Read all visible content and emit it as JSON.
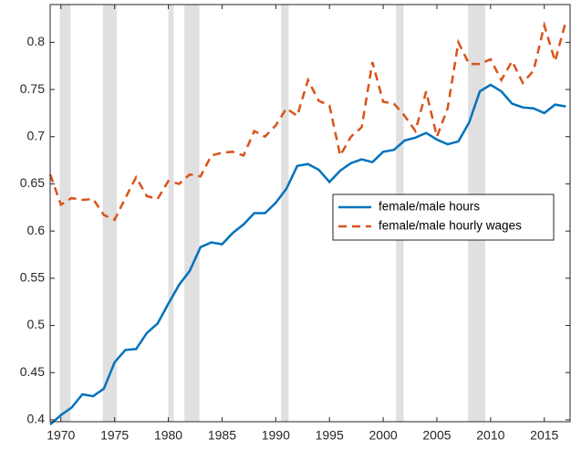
{
  "chart_data": {
    "type": "line",
    "x": [
      1969,
      1970,
      1971,
      1972,
      1973,
      1974,
      1975,
      1976,
      1977,
      1978,
      1979,
      1980,
      1981,
      1982,
      1983,
      1984,
      1985,
      1986,
      1987,
      1988,
      1989,
      1990,
      1991,
      1992,
      1993,
      1994,
      1995,
      1996,
      1997,
      1998,
      1999,
      2000,
      2001,
      2002,
      2003,
      2004,
      2005,
      2006,
      2007,
      2008,
      2009,
      2010,
      2011,
      2012,
      2013,
      2014,
      2015,
      2016,
      2017
    ],
    "series": [
      {
        "name": "female/male hours",
        "color": "#0072bd",
        "dash": "solid",
        "values": [
          0.395,
          0.405,
          0.413,
          0.427,
          0.425,
          0.433,
          0.461,
          0.474,
          0.475,
          0.492,
          0.502,
          0.523,
          0.543,
          0.558,
          0.583,
          0.588,
          0.586,
          0.598,
          0.607,
          0.619,
          0.619,
          0.63,
          0.645,
          0.669,
          0.671,
          0.665,
          0.652,
          0.664,
          0.672,
          0.676,
          0.673,
          0.684,
          0.686,
          0.696,
          0.699,
          0.704,
          0.697,
          0.692,
          0.695,
          0.715,
          0.748,
          0.755,
          0.748,
          0.735,
          0.731,
          0.73,
          0.725,
          0.734,
          0.732
        ]
      },
      {
        "name": "female/male hourly wages",
        "color": "#d95319",
        "dash": "dashed",
        "values": [
          0.66,
          0.628,
          0.635,
          0.633,
          0.634,
          0.617,
          0.612,
          0.635,
          0.657,
          0.637,
          0.634,
          0.653,
          0.65,
          0.66,
          0.658,
          0.68,
          0.683,
          0.684,
          0.68,
          0.706,
          0.7,
          0.712,
          0.73,
          0.722,
          0.76,
          0.738,
          0.733,
          0.68,
          0.7,
          0.71,
          0.779,
          0.737,
          0.735,
          0.722,
          0.706,
          0.748,
          0.7,
          0.73,
          0.8,
          0.777,
          0.777,
          0.782,
          0.76,
          0.78,
          0.757,
          0.77,
          0.818,
          0.78,
          0.822
        ]
      }
    ],
    "shaded_periods": [
      {
        "start": 1969.9,
        "end": 1970.9
      },
      {
        "start": 1973.9,
        "end": 1975.2
      },
      {
        "start": 1980.0,
        "end": 1980.5
      },
      {
        "start": 1981.5,
        "end": 1982.9
      },
      {
        "start": 1990.5,
        "end": 1991.2
      },
      {
        "start": 2001.2,
        "end": 2001.9
      },
      {
        "start": 2007.9,
        "end": 2009.5
      }
    ],
    "shade_color": "#e0e0e0",
    "xlim": [
      1969,
      2017.4
    ],
    "xticks": [
      1970,
      1975,
      1980,
      1985,
      1990,
      1995,
      2000,
      2005,
      2010,
      2015
    ],
    "ylim": [
      0.398,
      0.84
    ],
    "yticks": [
      0.4,
      0.45,
      0.5,
      0.55,
      0.6,
      0.65,
      0.7,
      0.75,
      0.8
    ],
    "legend": "right"
  }
}
